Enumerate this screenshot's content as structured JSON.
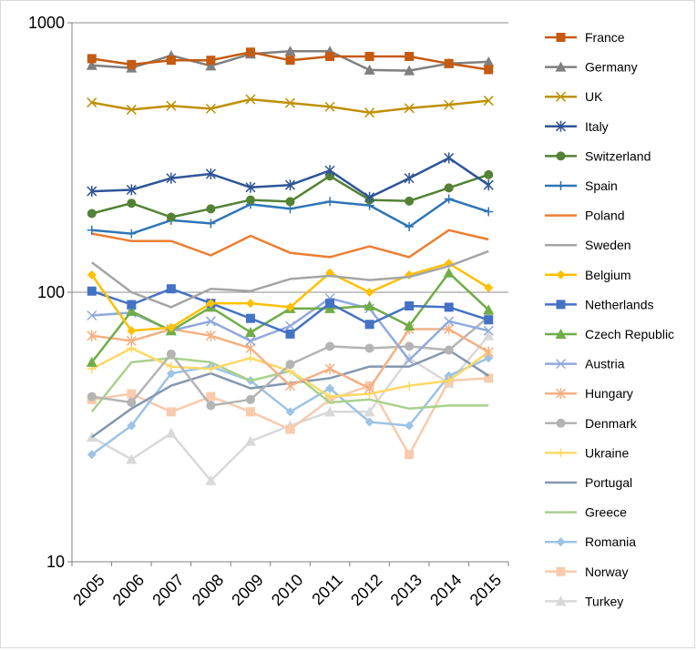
{
  "chart_data": {
    "type": "line",
    "title": "",
    "xlabel": "",
    "ylabel": "",
    "yscale": "log",
    "ylim": [
      10,
      1000
    ],
    "y_ticks": [
      "10",
      "100",
      "1000"
    ],
    "grid": "horizontal at decades",
    "legend_position": "right",
    "categories": [
      "2005",
      "2006",
      "2007",
      "2008",
      "2009",
      "2010",
      "2011",
      "2012",
      "2013",
      "2014",
      "2015"
    ],
    "series": [
      {
        "name": "France",
        "color": "#c55a11",
        "marker": "square",
        "values": [
          736,
          700,
          726,
          726,
          778,
          726,
          750,
          750,
          750,
          706,
          670
        ]
      },
      {
        "name": "Germany",
        "color": "#7f7f7f",
        "marker": "triangle",
        "values": [
          695,
          680,
          756,
          692,
          766,
          784,
          784,
          668,
          664,
          706,
          716
        ]
      },
      {
        "name": "UK",
        "color": "#bf9000",
        "marker": "x",
        "values": [
          506,
          476,
          492,
          480,
          520,
          504,
          488,
          464,
          482,
          496,
          514
        ]
      },
      {
        "name": "Italy",
        "color": "#2f5597",
        "marker": "star",
        "values": [
          237,
          240,
          265,
          275,
          245,
          250,
          283,
          225,
          265,
          315,
          250
        ]
      },
      {
        "name": "Switzerland",
        "color": "#548235",
        "marker": "circle",
        "values": [
          196,
          214,
          190,
          204,
          220,
          217,
          270,
          220,
          218,
          244,
          273
        ]
      },
      {
        "name": "Spain",
        "color": "#2e75b6",
        "marker": "plus",
        "values": [
          170,
          165,
          185,
          180,
          212,
          204,
          217,
          210,
          175,
          222,
          199
        ]
      },
      {
        "name": "Poland",
        "color": "#ed7d31",
        "marker": "none",
        "values": [
          165,
          155,
          155,
          137,
          162,
          140,
          135,
          148,
          135,
          170,
          157
        ]
      },
      {
        "name": "Sweden",
        "color": "#a5a5a5",
        "marker": "none",
        "values": [
          129,
          100,
          88,
          103,
          101,
          112,
          115,
          111,
          114,
          125,
          142
        ]
      },
      {
        "name": "Belgium",
        "color": "#ffc000",
        "marker": "diamond",
        "values": [
          116,
          72,
          74,
          91,
          91,
          88,
          118,
          100,
          116,
          128,
          104
        ]
      },
      {
        "name": "Netherlands",
        "color": "#4472c4",
        "marker": "square",
        "values": [
          101,
          90,
          103,
          91,
          80,
          70,
          91,
          76,
          89,
          88,
          79
        ]
      },
      {
        "name": "Czech Republic",
        "color": "#70ad47",
        "marker": "triangle",
        "values": [
          55,
          85,
          72,
          88,
          71,
          87,
          87,
          89,
          75,
          118,
          86
        ]
      },
      {
        "name": "Austria",
        "color": "#8faadc",
        "marker": "x",
        "values": [
          82,
          84,
          72,
          78,
          66,
          75,
          95,
          87,
          56,
          78,
          72
        ]
      },
      {
        "name": "Hungary",
        "color": "#f4b183",
        "marker": "star",
        "values": [
          69,
          66,
          73,
          69,
          62,
          45,
          52,
          44,
          73,
          73,
          60
        ]
      },
      {
        "name": "Denmark",
        "color": "#b4b4b4",
        "marker": "circle",
        "values": [
          41,
          39,
          59,
          38,
          40,
          54,
          63,
          62,
          63,
          61,
          81
        ]
      },
      {
        "name": "Ukraine",
        "color": "#ffd966",
        "marker": "plus",
        "values": [
          52,
          62,
          53,
          52,
          57,
          51,
          41,
          42,
          45,
          47,
          60
        ]
      },
      {
        "name": "Portugal",
        "color": "#8497b0",
        "marker": "none",
        "values": [
          29,
          37,
          45,
          50,
          44,
          46,
          48,
          53,
          53,
          61,
          49
        ]
      },
      {
        "name": "Greece",
        "color": "#a9d18e",
        "marker": "none",
        "values": [
          36,
          55,
          57,
          55,
          47,
          51,
          39,
          40,
          37,
          38,
          38
        ]
      },
      {
        "name": "Romania",
        "color": "#9dc3e6",
        "marker": "diamond",
        "values": [
          25,
          32,
          50,
          53,
          47,
          36,
          44,
          33,
          32,
          49,
          57
        ]
      },
      {
        "name": "Norway",
        "color": "#f8cbad",
        "marker": "square",
        "values": [
          40,
          42,
          36,
          41,
          36,
          31,
          40,
          45,
          25,
          47,
          48
        ]
      },
      {
        "name": "Turkey",
        "color": "#d9d9d9",
        "marker": "triangle",
        "values": [
          29,
          24,
          30,
          20,
          28,
          32,
          36,
          36,
          57,
          46,
          69
        ]
      }
    ]
  }
}
